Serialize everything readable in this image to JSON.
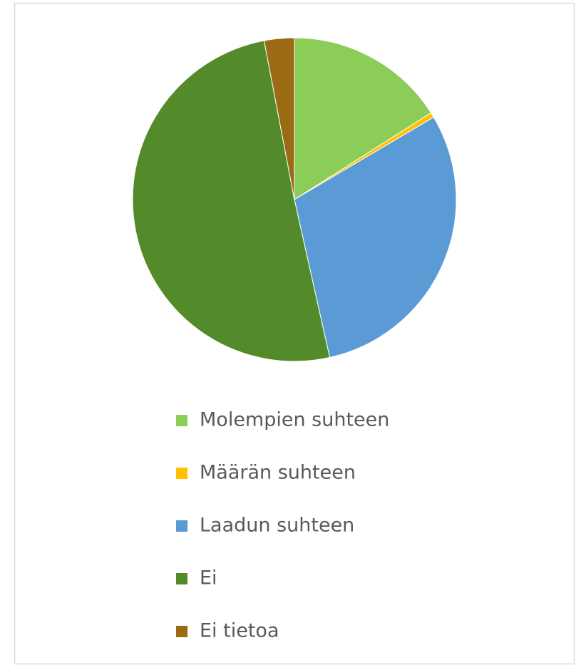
{
  "chart_data": {
    "type": "pie",
    "categories": [
      "Molempien suhteen",
      "Määrän suhteen",
      "Laadun suhteen",
      "Ei",
      "Ei tietoa"
    ],
    "values": [
      16,
      0.5,
      30,
      50.5,
      3
    ],
    "colors": [
      "#8ccd57",
      "#ffc000",
      "#5b9bd5",
      "#548b2a",
      "#9a6b12"
    ],
    "legend": "bottom"
  }
}
